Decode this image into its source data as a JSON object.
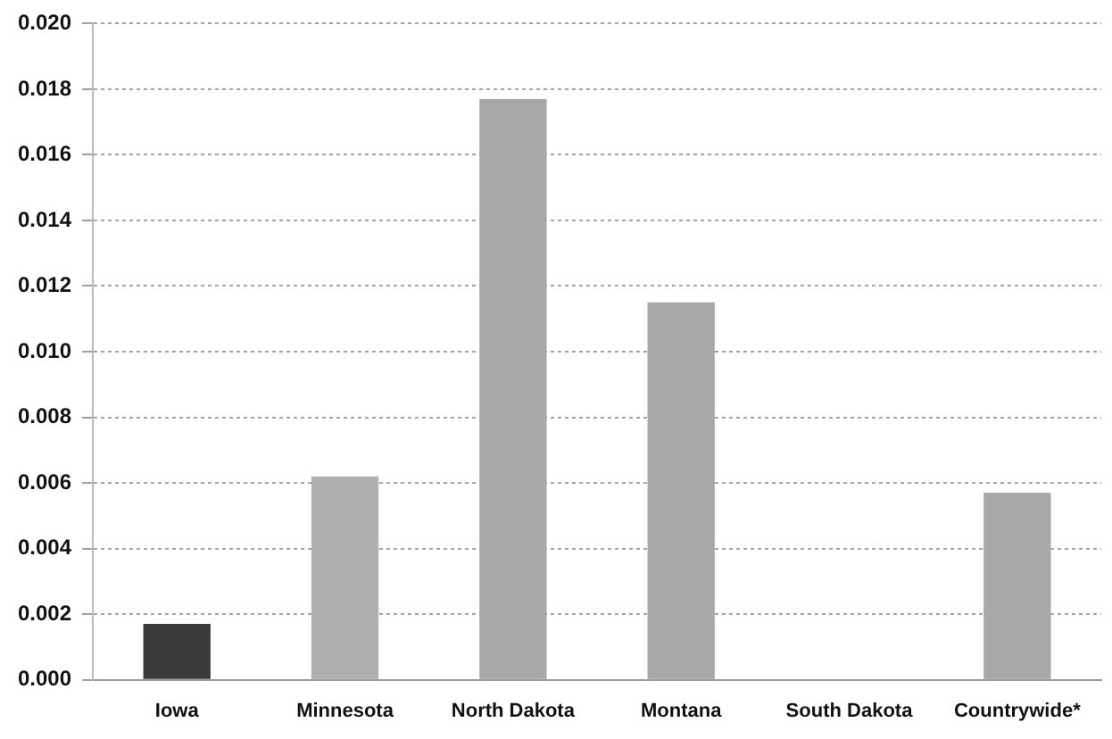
{
  "chart_data": {
    "type": "bar",
    "categories": [
      "Iowa",
      "Minnesota",
      "North Dakota",
      "Montana",
      "South Dakota",
      "Countrywide*"
    ],
    "values": [
      0.0017,
      0.0062,
      0.0177,
      0.0115,
      0,
      0.0057
    ],
    "colors": [
      "#3a3a3a",
      "#b0b0b0",
      "#a8a8a8",
      "#a8a8a8",
      "#a8a8a8",
      "#a8a8a8"
    ],
    "ylim": [
      0,
      0.02
    ],
    "yticks": [
      {
        "value": 0,
        "label": "0.000"
      },
      {
        "value": 0.002,
        "label": "0.002"
      },
      {
        "value": 0.004,
        "label": "0.004"
      },
      {
        "value": 0.006,
        "label": "0.006"
      },
      {
        "value": 0.008,
        "label": "0.008"
      },
      {
        "value": 0.01,
        "label": "0.010"
      },
      {
        "value": 0.012,
        "label": "0.012"
      },
      {
        "value": 0.014,
        "label": "0.014"
      },
      {
        "value": 0.016,
        "label": "0.016"
      },
      {
        "value": 0.018,
        "label": "0.018"
      },
      {
        "value": 0.02,
        "label": "0.020"
      }
    ],
    "grid": "y",
    "legend": false
  }
}
